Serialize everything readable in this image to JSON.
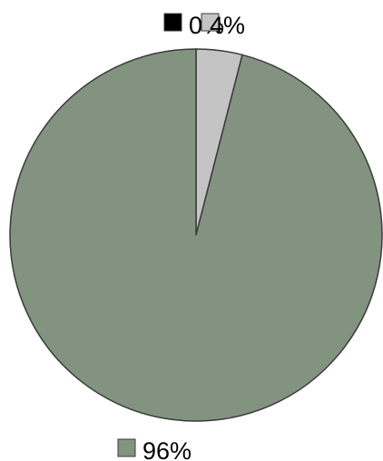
{
  "chart_data": {
    "type": "pie",
    "slices": [
      {
        "value": 0,
        "label": "0%",
        "color": "#000000"
      },
      {
        "value": 4,
        "label": "4%",
        "color": "#c4c4c4"
      },
      {
        "value": 96,
        "label": "96%",
        "color": "#829480"
      }
    ],
    "title": "",
    "start_angle_deg": 0,
    "direction": "clockwise",
    "slice_stroke": "#3a3a3a"
  }
}
